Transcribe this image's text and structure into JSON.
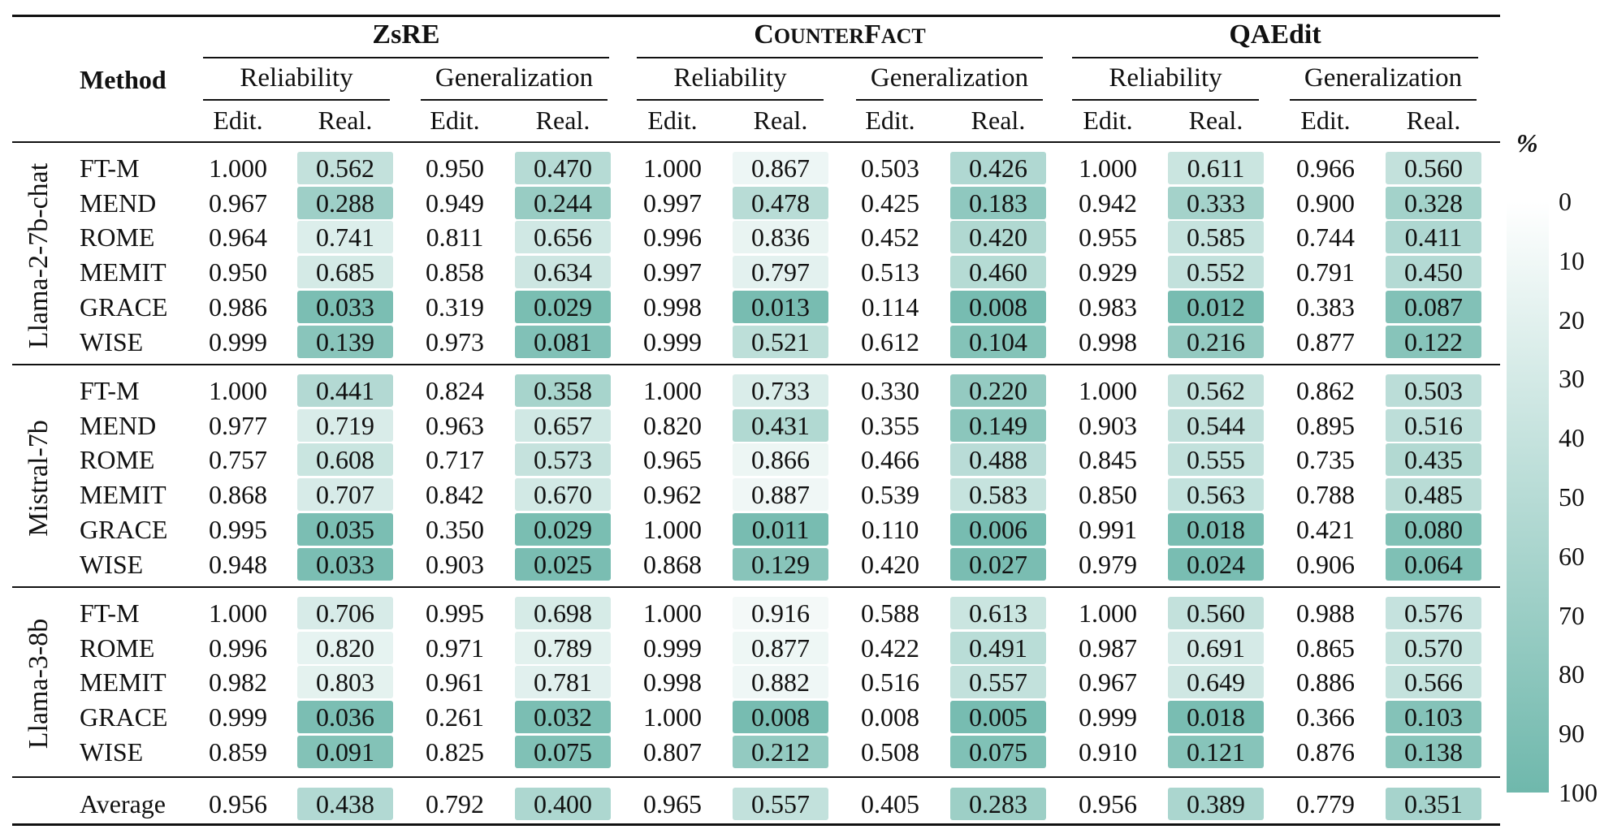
{
  "datasets": [
    {
      "name_parts": [
        {
          "t": "ZsRE",
          "style": "bold"
        }
      ]
    },
    {
      "name_parts": [
        {
          "t": "C",
          "style": "sc-big"
        },
        {
          "t": "OUNTER",
          "style": "sc-small"
        },
        {
          "t": "F",
          "style": "sc-big"
        },
        {
          "t": "ACT",
          "style": "sc-small"
        }
      ]
    },
    {
      "name_parts": [
        {
          "t": "QAEdit",
          "style": "bold"
        }
      ]
    }
  ],
  "method_header": "Method",
  "subgroups": [
    "Reliability",
    "Generalization"
  ],
  "columns": [
    "Edit.",
    "Real."
  ],
  "models": [
    {
      "name": "Llama-2-7b-chat",
      "rows": [
        {
          "method": "FT-M",
          "values": [
            "1.000",
            "0.562",
            "0.950",
            "0.470",
            "1.000",
            "0.867",
            "0.503",
            "0.426",
            "1.000",
            "0.611",
            "0.966",
            "0.560"
          ]
        },
        {
          "method": "MEND",
          "values": [
            "0.967",
            "0.288",
            "0.949",
            "0.244",
            "0.997",
            "0.478",
            "0.425",
            "0.183",
            "0.942",
            "0.333",
            "0.900",
            "0.328"
          ]
        },
        {
          "method": "ROME",
          "values": [
            "0.964",
            "0.741",
            "0.811",
            "0.656",
            "0.996",
            "0.836",
            "0.452",
            "0.420",
            "0.955",
            "0.585",
            "0.744",
            "0.411"
          ]
        },
        {
          "method": "MEMIT",
          "values": [
            "0.950",
            "0.685",
            "0.858",
            "0.634",
            "0.997",
            "0.797",
            "0.513",
            "0.460",
            "0.929",
            "0.552",
            "0.791",
            "0.450"
          ]
        },
        {
          "method": "GRACE",
          "values": [
            "0.986",
            "0.033",
            "0.319",
            "0.029",
            "0.998",
            "0.013",
            "0.114",
            "0.008",
            "0.983",
            "0.012",
            "0.383",
            "0.087"
          ]
        },
        {
          "method": "WISE",
          "values": [
            "0.999",
            "0.139",
            "0.973",
            "0.081",
            "0.999",
            "0.521",
            "0.612",
            "0.104",
            "0.998",
            "0.216",
            "0.877",
            "0.122"
          ]
        }
      ]
    },
    {
      "name": "Mistral-7b",
      "rows": [
        {
          "method": "FT-M",
          "values": [
            "1.000",
            "0.441",
            "0.824",
            "0.358",
            "1.000",
            "0.733",
            "0.330",
            "0.220",
            "1.000",
            "0.562",
            "0.862",
            "0.503"
          ]
        },
        {
          "method": "MEND",
          "values": [
            "0.977",
            "0.719",
            "0.963",
            "0.657",
            "0.820",
            "0.431",
            "0.355",
            "0.149",
            "0.903",
            "0.544",
            "0.895",
            "0.516"
          ]
        },
        {
          "method": "ROME",
          "values": [
            "0.757",
            "0.608",
            "0.717",
            "0.573",
            "0.965",
            "0.866",
            "0.466",
            "0.488",
            "0.845",
            "0.555",
            "0.735",
            "0.435"
          ]
        },
        {
          "method": "MEMIT",
          "values": [
            "0.868",
            "0.707",
            "0.842",
            "0.670",
            "0.962",
            "0.887",
            "0.539",
            "0.583",
            "0.850",
            "0.563",
            "0.788",
            "0.485"
          ]
        },
        {
          "method": "GRACE",
          "values": [
            "0.995",
            "0.035",
            "0.350",
            "0.029",
            "1.000",
            "0.011",
            "0.110",
            "0.006",
            "0.991",
            "0.018",
            "0.421",
            "0.080"
          ]
        },
        {
          "method": "WISE",
          "values": [
            "0.948",
            "0.033",
            "0.903",
            "0.025",
            "0.868",
            "0.129",
            "0.420",
            "0.027",
            "0.979",
            "0.024",
            "0.906",
            "0.064"
          ]
        }
      ]
    },
    {
      "name": "Llama-3-8b",
      "rows": [
        {
          "method": "FT-M",
          "values": [
            "1.000",
            "0.706",
            "0.995",
            "0.698",
            "1.000",
            "0.916",
            "0.588",
            "0.613",
            "1.000",
            "0.560",
            "0.988",
            "0.576"
          ]
        },
        {
          "method": "ROME",
          "values": [
            "0.996",
            "0.820",
            "0.971",
            "0.789",
            "0.999",
            "0.877",
            "0.422",
            "0.491",
            "0.987",
            "0.691",
            "0.865",
            "0.570"
          ]
        },
        {
          "method": "MEMIT",
          "values": [
            "0.982",
            "0.803",
            "0.961",
            "0.781",
            "0.998",
            "0.882",
            "0.516",
            "0.557",
            "0.967",
            "0.649",
            "0.886",
            "0.566"
          ]
        },
        {
          "method": "GRACE",
          "values": [
            "0.999",
            "0.036",
            "0.261",
            "0.032",
            "1.000",
            "0.008",
            "0.008",
            "0.005",
            "0.999",
            "0.018",
            "0.366",
            "0.103"
          ]
        },
        {
          "method": "WISE",
          "values": [
            "0.859",
            "0.091",
            "0.825",
            "0.075",
            "0.807",
            "0.212",
            "0.508",
            "0.075",
            "0.910",
            "0.121",
            "0.876",
            "0.138"
          ]
        }
      ]
    }
  ],
  "average": {
    "method": "Average",
    "values": [
      "0.956",
      "0.438",
      "0.792",
      "0.400",
      "0.965",
      "0.557",
      "0.405",
      "0.283",
      "0.956",
      "0.389",
      "0.779",
      "0.351"
    ]
  },
  "colorbar": {
    "unit": "%",
    "ticks": [
      "0",
      "10",
      "20",
      "30",
      "40",
      "50",
      "60",
      "70",
      "80",
      "90",
      "100"
    ],
    "color_low": "#ffffff",
    "color_high": "#6fb8ac"
  },
  "chart_data": {
    "type": "table",
    "title": "",
    "color_scale": {
      "unit": "%",
      "min": 0,
      "max": 100,
      "color_low": "#ffffff",
      "color_high": "#6fb8ac"
    }
  }
}
